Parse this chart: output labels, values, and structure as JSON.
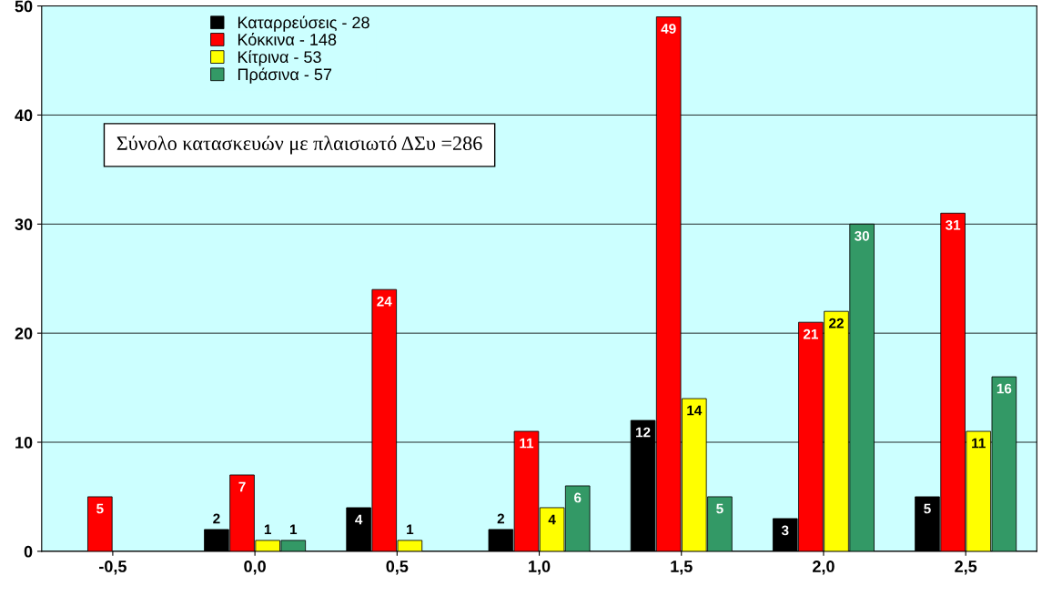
{
  "chart_data": {
    "type": "bar",
    "categories": [
      "-0,5",
      "0,0",
      "0,5",
      "1,0",
      "1,5",
      "2,0",
      "2,5"
    ],
    "series": [
      {
        "name": "Καταρρεύσεις - 28",
        "color": "#000000",
        "values": [
          null,
          2,
          4,
          2,
          12,
          3,
          5
        ]
      },
      {
        "name": "Κόκκινα - 148",
        "color": "#ff0000",
        "values": [
          5,
          7,
          24,
          11,
          49,
          21,
          31
        ]
      },
      {
        "name": "Κίτρινα - 53",
        "color": "#ffff00",
        "values": [
          null,
          1,
          1,
          4,
          14,
          22,
          11
        ]
      },
      {
        "name": "Πράσινα - 57",
        "color": "#339966",
        "values": [
          null,
          1,
          null,
          6,
          5,
          30,
          16
        ]
      }
    ],
    "ylim": [
      0,
      50
    ],
    "yticks": [
      0,
      10,
      20,
      30,
      40,
      50
    ],
    "grid": "y",
    "legend": "top left",
    "data_labels": true,
    "annotations": [
      "Σύνολο κατασκευών με πλαισιωτό ΔΣυ =286"
    ]
  }
}
